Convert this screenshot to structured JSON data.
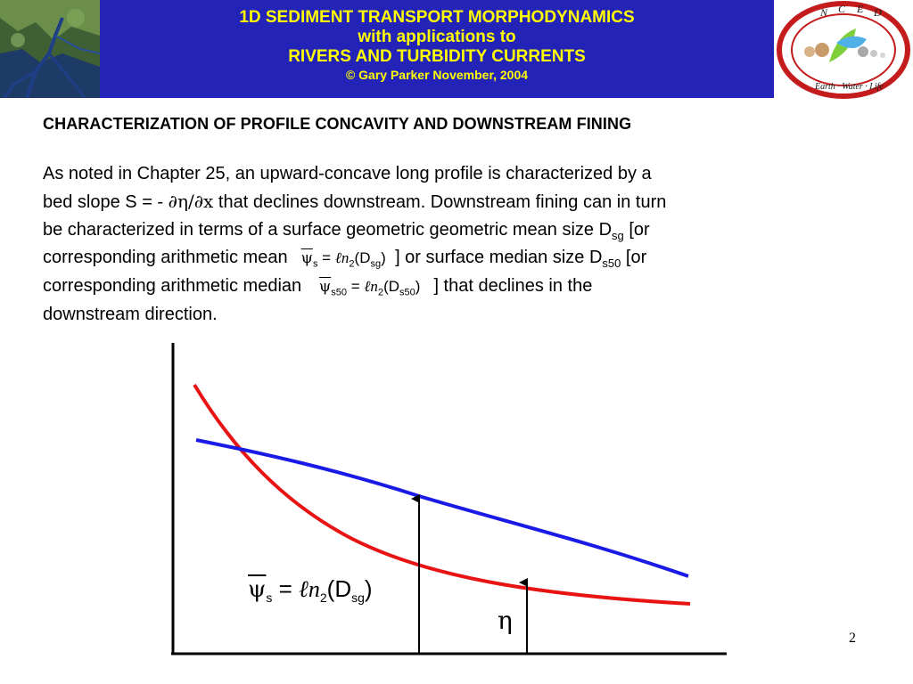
{
  "header": {
    "line1": "1D SEDIMENT TRANSPORT MORPHODYNAMICS",
    "line2": "with applications to",
    "line3": "RIVERS AND TURBIDITY CURRENTS",
    "line4": "© Gary Parker November, 2004",
    "banner_color": "#2323b8",
    "text_color": "#ffff00"
  },
  "logo": {
    "letters_top": [
      "N",
      "C",
      "E",
      "D"
    ],
    "ring_text": "Earth · Water · Life",
    "ring_color": "#c41c1c"
  },
  "slide": {
    "title": "CHARACTERIZATION OF PROFILE CONCAVITY AND DOWNSTREAM FINING",
    "para": {
      "l1": "As noted in Chapter 25, an upward-concave long profile is characterized by a",
      "l2a": "bed slope S = - ",
      "l2b": "∂η/∂x",
      "l2c": " that declines downstream.  Downstream fining can in turn",
      "l3a": "be characterized in terms of a surface geometric geometric mean size D",
      "l3sub": "sg",
      "l3b": " [or",
      "l4a": "corresponding arithmetic mean ",
      "l4b": " ] or surface median size D",
      "l4sub": "s50",
      "l4c": " [or",
      "l5a": "corresponding arithmetic median ",
      "l5b": " ] that declines in the",
      "l6": "downstream direction."
    },
    "eq_mean": {
      "psi": "ψ",
      "sub": "s",
      "eq": " = ",
      "ln": "ℓn",
      "two": "2",
      "open": "(D",
      "dsub": "sg",
      "close": ")"
    },
    "eq_median": {
      "psi": "ψ",
      "sub": "s50",
      "eq": " = ",
      "ln": "ℓn",
      "two": "2",
      "open": "(D",
      "dsub": "s50",
      "close": ")"
    },
    "diagram_eq": {
      "psi": "ψ",
      "sub": "s",
      "eq": " = ",
      "ln": "ℓn",
      "two": "2",
      "open": "(D",
      "dsub": "sg",
      "close": ")"
    },
    "eta": "η",
    "page_number": "2"
  },
  "diagram": {
    "curve_eta_color": "#1a1ae6",
    "curve_psi_color": "#e81414"
  }
}
